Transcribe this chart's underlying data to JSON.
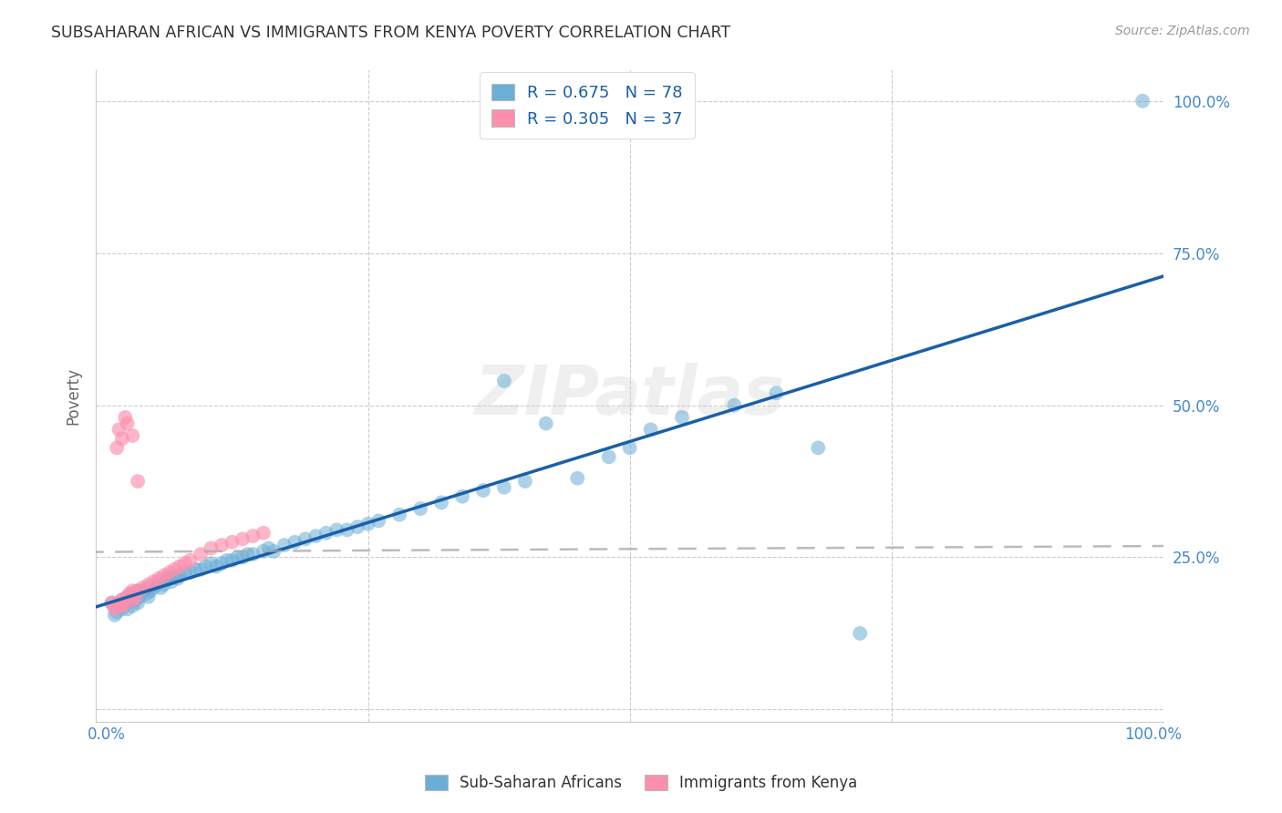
{
  "title": "SUBSAHARAN AFRICAN VS IMMIGRANTS FROM KENYA POVERTY CORRELATION CHART",
  "source": "Source: ZipAtlas.com",
  "ylabel": "Poverty",
  "legend_blue_label": "R = 0.675   N = 78",
  "legend_pink_label": "R = 0.305   N = 37",
  "blue_color": "#6baed6",
  "pink_color": "#fc8fac",
  "blue_line_color": "#1a5fa8",
  "pink_line_color": "#e0305a",
  "title_color": "#333333",
  "source_color": "#999999",
  "axis_color": "#4488cc",
  "grid_color": "#cccccc",
  "background_color": "#ffffff",
  "watermark_text": "ZIPatlas",
  "blue_scatter_x": [
    0.005,
    0.008,
    0.01,
    0.012,
    0.015,
    0.015,
    0.018,
    0.02,
    0.02,
    0.022,
    0.025,
    0.025,
    0.028,
    0.03,
    0.03,
    0.032,
    0.035,
    0.038,
    0.04,
    0.04,
    0.042,
    0.045,
    0.048,
    0.05,
    0.052,
    0.055,
    0.058,
    0.06,
    0.062,
    0.065,
    0.068,
    0.07,
    0.075,
    0.08,
    0.085,
    0.09,
    0.095,
    0.1,
    0.105,
    0.11,
    0.115,
    0.12,
    0.125,
    0.13,
    0.135,
    0.14,
    0.15,
    0.155,
    0.16,
    0.17,
    0.18,
    0.19,
    0.2,
    0.21,
    0.22,
    0.23,
    0.24,
    0.25,
    0.26,
    0.28,
    0.3,
    0.32,
    0.34,
    0.36,
    0.38,
    0.4,
    0.42,
    0.45,
    0.48,
    0.5,
    0.52,
    0.55,
    0.6,
    0.64,
    0.68,
    0.72,
    0.38,
    0.99
  ],
  "blue_scatter_y": [
    0.175,
    0.155,
    0.16,
    0.17,
    0.18,
    0.165,
    0.175,
    0.185,
    0.165,
    0.18,
    0.19,
    0.17,
    0.18,
    0.195,
    0.175,
    0.185,
    0.195,
    0.19,
    0.2,
    0.185,
    0.195,
    0.2,
    0.205,
    0.21,
    0.2,
    0.205,
    0.215,
    0.215,
    0.21,
    0.22,
    0.215,
    0.22,
    0.225,
    0.225,
    0.23,
    0.23,
    0.235,
    0.24,
    0.235,
    0.24,
    0.245,
    0.245,
    0.25,
    0.25,
    0.255,
    0.255,
    0.26,
    0.265,
    0.26,
    0.27,
    0.275,
    0.28,
    0.285,
    0.29,
    0.295,
    0.295,
    0.3,
    0.305,
    0.31,
    0.32,
    0.33,
    0.34,
    0.35,
    0.36,
    0.365,
    0.375,
    0.47,
    0.38,
    0.415,
    0.43,
    0.46,
    0.48,
    0.5,
    0.52,
    0.43,
    0.125,
    0.54,
    1.0
  ],
  "pink_scatter_x": [
    0.005,
    0.008,
    0.01,
    0.012,
    0.015,
    0.015,
    0.018,
    0.02,
    0.022,
    0.025,
    0.025,
    0.028,
    0.03,
    0.035,
    0.04,
    0.045,
    0.05,
    0.055,
    0.06,
    0.065,
    0.07,
    0.075,
    0.08,
    0.09,
    0.1,
    0.11,
    0.12,
    0.13,
    0.14,
    0.15,
    0.01,
    0.012,
    0.015,
    0.018,
    0.02,
    0.025,
    0.03
  ],
  "pink_scatter_y": [
    0.175,
    0.165,
    0.17,
    0.175,
    0.18,
    0.17,
    0.175,
    0.185,
    0.19,
    0.195,
    0.18,
    0.185,
    0.195,
    0.2,
    0.205,
    0.21,
    0.215,
    0.22,
    0.225,
    0.23,
    0.235,
    0.24,
    0.245,
    0.255,
    0.265,
    0.27,
    0.275,
    0.28,
    0.285,
    0.29,
    0.43,
    0.46,
    0.445,
    0.48,
    0.47,
    0.45,
    0.375
  ]
}
